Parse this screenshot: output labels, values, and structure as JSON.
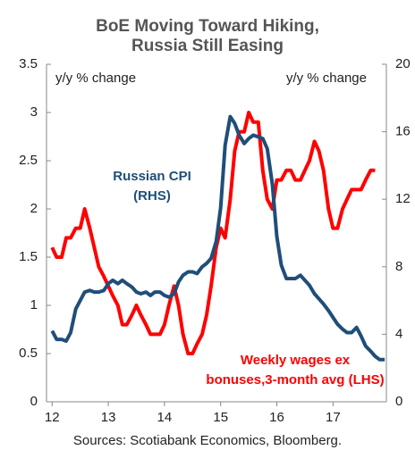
{
  "chart_data": {
    "type": "line",
    "title": [
      "BoE Moving Toward Hiking,",
      "Russia Still Easing"
    ],
    "ylabel": "y/y % change",
    "y2label": "y/y % change",
    "annotations": [
      {
        "lines": [
          "Russian CPI",
          "(RHS)"
        ],
        "color": "#1f4e79"
      },
      {
        "lines": [
          "Weekly wages ex",
          "bonuses,3-month avg (LHS)"
        ],
        "color": "#ff0000"
      }
    ],
    "source": "Sources: Scotiabank Economics, Bloomberg.",
    "x": [
      12,
      12.08,
      12.17,
      12.25,
      12.33,
      12.42,
      12.5,
      12.58,
      12.67,
      12.75,
      12.83,
      12.92,
      13,
      13.08,
      13.17,
      13.25,
      13.33,
      13.42,
      13.5,
      13.58,
      13.67,
      13.75,
      13.83,
      13.92,
      14,
      14.08,
      14.17,
      14.25,
      14.33,
      14.42,
      14.5,
      14.58,
      14.67,
      14.75,
      14.83,
      14.92,
      15,
      15.08,
      15.17,
      15.25,
      15.33,
      15.42,
      15.5,
      15.58,
      15.67,
      15.75,
      15.83,
      15.92,
      16,
      16.08,
      16.17,
      16.25,
      16.33,
      16.42,
      16.5,
      16.58,
      16.67,
      16.75,
      16.83,
      16.92,
      17,
      17.08,
      17.17,
      17.25,
      17.33,
      17.42,
      17.5,
      17.58,
      17.67,
      17.75,
      17.83,
      17.92
    ],
    "series": [
      {
        "name": "Weekly wages ex bonuses,3-month avg (LHS)",
        "color": "#ff0000",
        "axis": "y",
        "values": [
          1.6,
          1.5,
          1.5,
          1.7,
          1.7,
          1.8,
          1.8,
          2.0,
          1.8,
          1.6,
          1.4,
          1.3,
          1.2,
          1.1,
          1.0,
          0.8,
          0.8,
          0.9,
          1.0,
          0.9,
          0.8,
          0.7,
          0.7,
          0.7,
          0.8,
          1.0,
          1.2,
          1.0,
          0.7,
          0.5,
          0.5,
          0.6,
          0.7,
          0.9,
          1.2,
          1.6,
          1.8,
          1.7,
          2.1,
          2.6,
          2.8,
          2.8,
          3.0,
          2.9,
          2.9,
          2.4,
          2.1,
          2.0,
          2.3,
          2.3,
          2.4,
          2.4,
          2.3,
          2.3,
          2.4,
          2.5,
          2.7,
          2.6,
          2.4,
          2.0,
          1.8,
          1.8,
          2.0,
          2.1,
          2.2,
          2.2,
          2.2,
          2.3,
          2.4,
          2.4,
          null,
          null
        ]
      },
      {
        "name": "Russian CPI (RHS)",
        "color": "#1f4e79",
        "axis": "y2",
        "values": [
          4.2,
          3.7,
          3.7,
          3.6,
          4.1,
          5.5,
          6.0,
          6.5,
          6.6,
          6.5,
          6.5,
          6.6,
          7.0,
          7.2,
          7.0,
          7.2,
          7.0,
          6.8,
          6.5,
          6.4,
          6.5,
          6.3,
          6.5,
          6.5,
          6.3,
          6.2,
          6.4,
          7.1,
          7.5,
          7.7,
          7.7,
          7.6,
          8.0,
          8.2,
          8.5,
          9.5,
          11.5,
          15.2,
          16.9,
          16.5,
          15.8,
          15.3,
          15.6,
          15.8,
          15.7,
          15.6,
          15.0,
          12.9,
          9.8,
          8.1,
          7.3,
          7.3,
          7.3,
          7.5,
          7.2,
          6.9,
          6.4,
          6.1,
          5.8,
          5.4,
          5.0,
          4.6,
          4.3,
          4.1,
          4.1,
          4.4,
          3.9,
          3.3,
          3.0,
          2.7,
          2.5,
          2.5
        ]
      }
    ],
    "xlim": [
      11.9,
      17.95
    ],
    "xticks": [
      12,
      13,
      14,
      15,
      16,
      17
    ],
    "ylim": [
      0,
      3.5
    ],
    "yticks": [
      0,
      0.5,
      1,
      1.5,
      2,
      2.5,
      3,
      3.5
    ],
    "y2lim": [
      0,
      20
    ],
    "y2ticks": [
      0,
      4,
      8,
      12,
      16,
      20
    ]
  }
}
